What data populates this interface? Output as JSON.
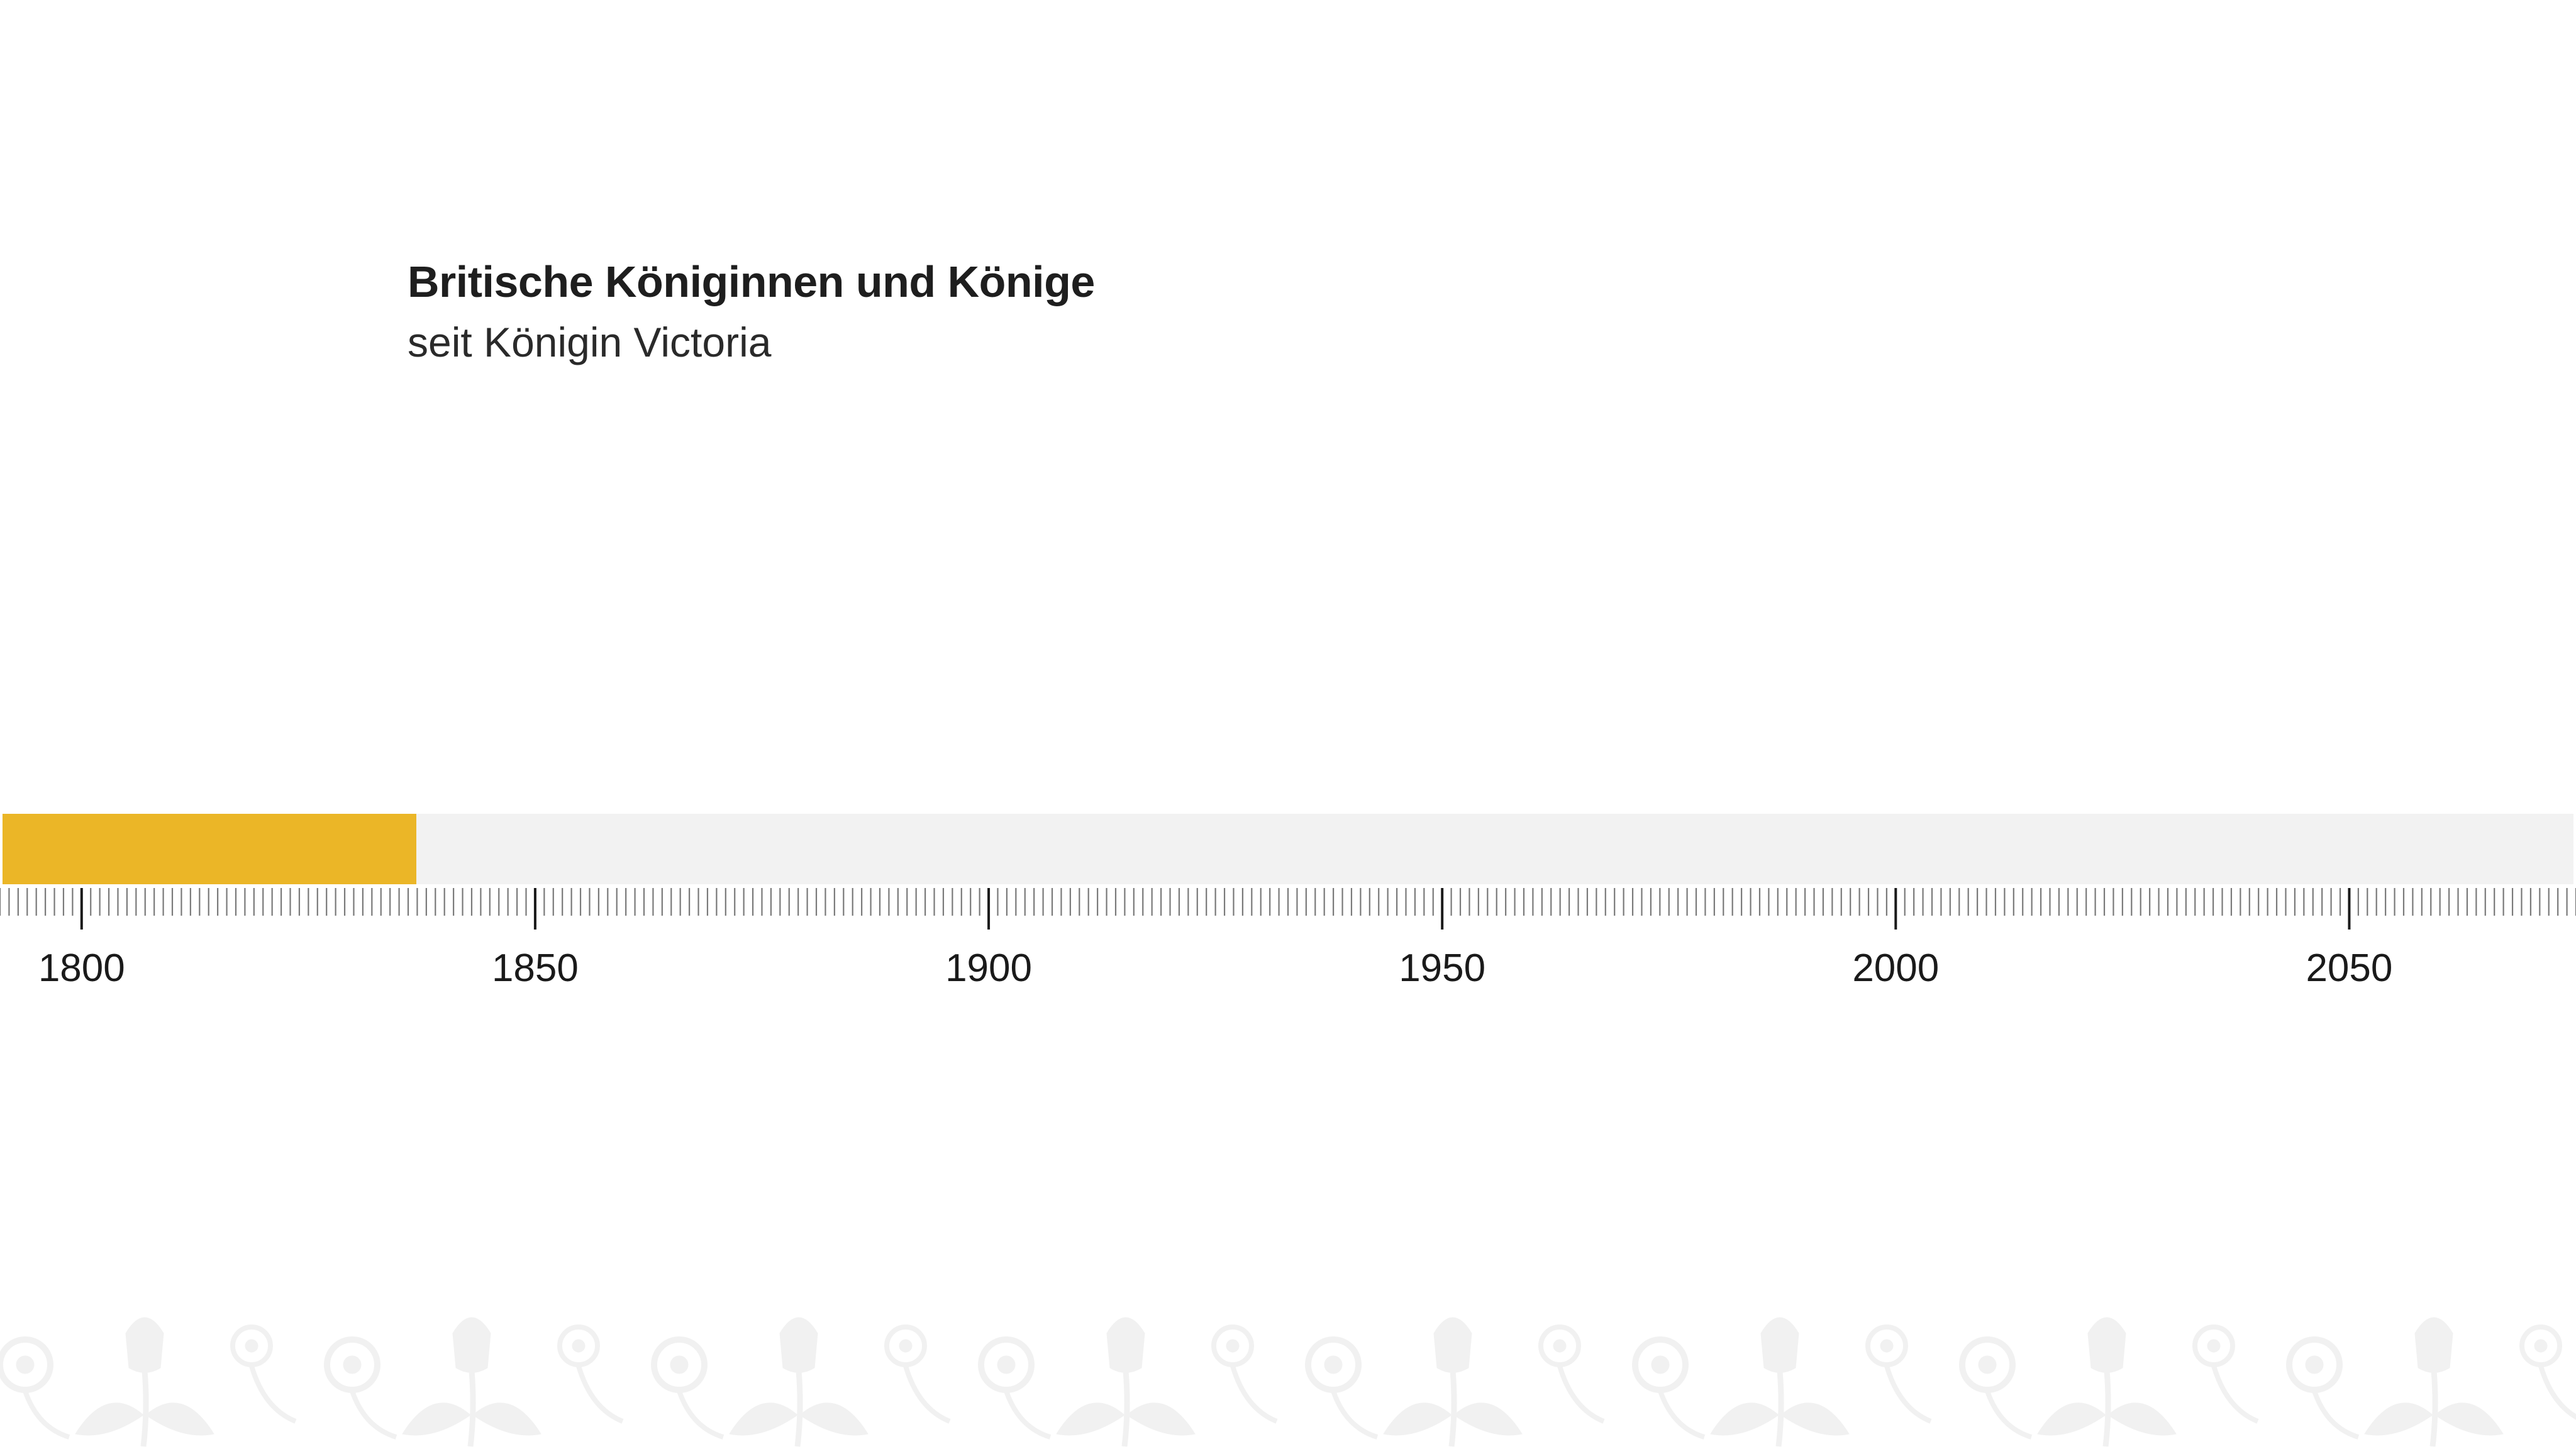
{
  "chart_data": {
    "type": "bar",
    "orientation": "horizontal-timeline",
    "title": "Britische Königinnen und Könige",
    "subtitle": "seit Königin Victoria",
    "xlim": [
      1791,
      2075
    ],
    "x_ticks": [
      1800,
      1850,
      1900,
      1950,
      2000,
      2050
    ],
    "minor_tick_step": 1,
    "bars": [
      {
        "start": 1791,
        "end": 1836.9
      }
    ],
    "colors": {
      "bar": "#ebb627",
      "track": "#f2f2f2",
      "axis": "#1a1a1a",
      "ornament": "#f1f1f1"
    },
    "grid": false
  },
  "ornament": {
    "icon": "floral-thistle-band-icon"
  }
}
